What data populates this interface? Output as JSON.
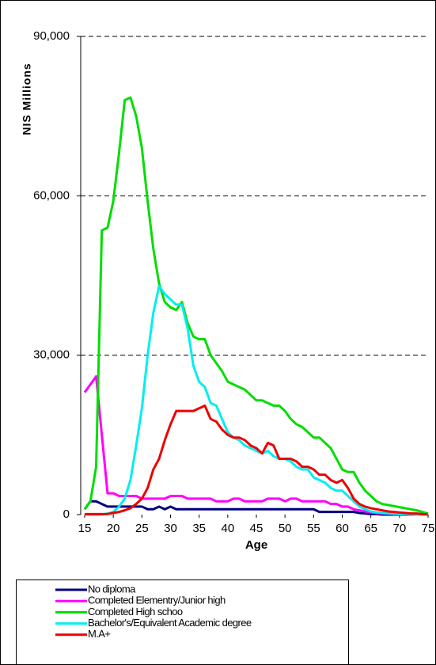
{
  "chart_data": {
    "type": "line",
    "xlabel": "Age",
    "ylabel": "NIS Millions",
    "x": [
      15,
      16,
      17,
      18,
      19,
      20,
      21,
      22,
      23,
      24,
      25,
      26,
      27,
      28,
      29,
      30,
      31,
      32,
      33,
      34,
      35,
      36,
      37,
      38,
      39,
      40,
      41,
      42,
      43,
      44,
      45,
      46,
      47,
      48,
      49,
      50,
      51,
      52,
      53,
      54,
      55,
      56,
      57,
      58,
      59,
      60,
      61,
      62,
      63,
      64,
      65,
      66,
      67,
      68,
      69,
      70,
      71,
      72,
      73,
      74,
      75
    ],
    "xlim": [
      15,
      75
    ],
    "xticks": [
      15,
      20,
      25,
      30,
      35,
      40,
      45,
      50,
      55,
      60,
      65,
      70,
      75
    ],
    "ylim": [
      0,
      90000
    ],
    "yticks": [
      0,
      {
        "value": 30000,
        "label": "30,000"
      },
      {
        "value": 60000,
        "label": "60,000"
      },
      {
        "value": 90000,
        "label": "90,000"
      }
    ],
    "grid": true,
    "series": [
      {
        "name": "No diploma",
        "color": "#000080",
        "values": [
          1000,
          2500,
          2500,
          2000,
          1500,
          1500,
          1500,
          1500,
          1500,
          1500,
          1500,
          1000,
          1000,
          1500,
          1000,
          1500,
          1000,
          1000,
          1000,
          1000,
          1000,
          1000,
          1000,
          1000,
          1000,
          1000,
          1000,
          1000,
          1000,
          1000,
          1000,
          1000,
          1000,
          1000,
          1000,
          1000,
          1000,
          1000,
          1000,
          1000,
          1000,
          500,
          500,
          500,
          500,
          500,
          500,
          500,
          300,
          200,
          100,
          100,
          0,
          0,
          0,
          0,
          0,
          0,
          0,
          0,
          0
        ]
      },
      {
        "name": "Completed Elementry/Junior high",
        "color": "#ff00ff",
        "values": [
          23000,
          24500,
          26000,
          15000,
          4000,
          4000,
          3500,
          3500,
          3500,
          3500,
          3000,
          3000,
          3000,
          3000,
          3000,
          3500,
          3500,
          3500,
          3000,
          3000,
          3000,
          3000,
          3000,
          2500,
          2500,
          2500,
          3000,
          3000,
          2500,
          2500,
          2500,
          2500,
          3000,
          3000,
          3000,
          2500,
          3000,
          3000,
          2500,
          2500,
          2500,
          2500,
          2500,
          2000,
          2000,
          1500,
          1500,
          1000,
          800,
          600,
          400,
          300,
          200,
          200,
          100,
          100,
          100,
          0,
          0,
          0,
          0
        ]
      },
      {
        "name": "Completed High schoo",
        "color": "#00dd00",
        "values": [
          1000,
          2500,
          9000,
          53500,
          54000,
          59000,
          68000,
          78000,
          78500,
          75000,
          69000,
          59000,
          50000,
          43500,
          40000,
          39000,
          38500,
          40000,
          36000,
          33500,
          33000,
          33000,
          30000,
          28500,
          27000,
          25000,
          24500,
          24000,
          23500,
          22500,
          21500,
          21500,
          21000,
          20500,
          20500,
          19500,
          18000,
          17000,
          16500,
          15500,
          14500,
          14500,
          13500,
          12500,
          10500,
          8500,
          8000,
          8000,
          6000,
          4500,
          3500,
          2500,
          2000,
          1800,
          1600,
          1400,
          1200,
          1000,
          800,
          500,
          200
        ]
      },
      {
        "name": "Bachelor's/Equivalent Academic degree",
        "color": "#00eeee",
        "values": [
          0,
          0,
          0,
          0,
          200,
          500,
          1500,
          3000,
          6500,
          13000,
          20000,
          30000,
          38000,
          43000,
          41500,
          40500,
          39500,
          39500,
          35000,
          28000,
          25000,
          24000,
          21000,
          20500,
          18000,
          15500,
          14500,
          14000,
          13000,
          12500,
          12000,
          11500,
          12000,
          11000,
          10500,
          10500,
          10000,
          9000,
          8500,
          8500,
          7000,
          6500,
          6000,
          5000,
          4500,
          4500,
          3500,
          2500,
          1500,
          1000,
          600,
          400,
          300,
          200,
          200,
          100,
          100,
          100,
          0,
          0,
          0
        ]
      },
      {
        "name": "M.A+",
        "color": "#ee0000",
        "values": [
          100,
          100,
          100,
          100,
          100,
          300,
          500,
          800,
          1200,
          2000,
          3000,
          5000,
          8500,
          10500,
          14000,
          17000,
          19500,
          19500,
          19500,
          19500,
          20000,
          20500,
          18000,
          17500,
          16000,
          15000,
          14500,
          14500,
          14000,
          13000,
          12500,
          11500,
          13500,
          13000,
          10500,
          10500,
          10500,
          10000,
          9000,
          9000,
          8500,
          7500,
          7500,
          6500,
          6000,
          6500,
          5000,
          3000,
          2000,
          1500,
          1200,
          1000,
          800,
          600,
          500,
          400,
          300,
          200,
          200,
          100,
          0
        ]
      }
    ]
  }
}
